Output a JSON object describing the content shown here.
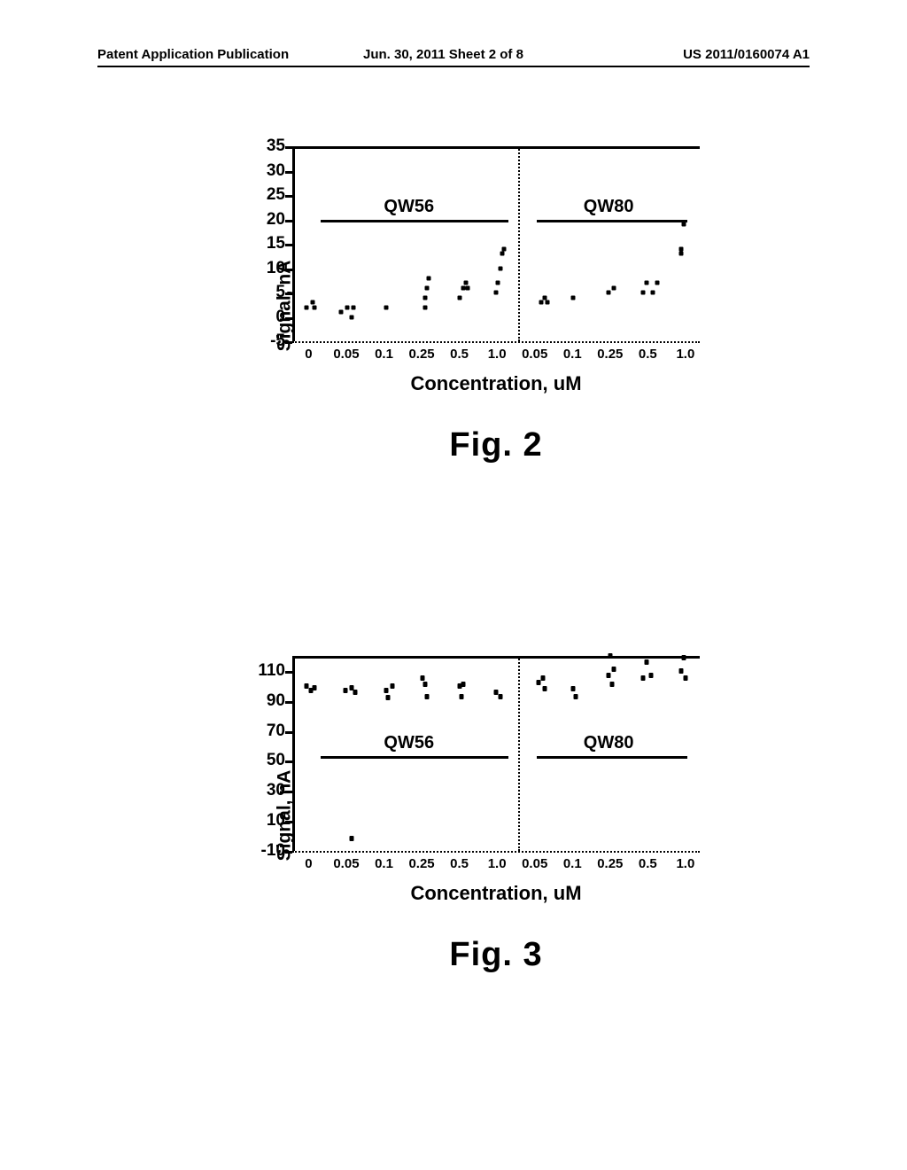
{
  "header": {
    "left": "Patent Application Publication",
    "mid": "Jun. 30, 2011  Sheet 2 of 8",
    "right": "US 2011/0160074 A1"
  },
  "labels": {
    "ylabel": "Signal, nA",
    "xlabel": "Concentration, uM",
    "series_a": "QW56",
    "series_b": "QW80",
    "fig2": "Fig. 2",
    "fig3": "Fig. 3"
  },
  "fig2": {
    "type": "scatter",
    "ylim": [
      -5,
      35
    ],
    "yticks": [
      -5,
      0,
      5,
      10,
      15,
      20,
      25,
      30,
      35
    ],
    "xcats": [
      "0",
      "0.05",
      "0.1",
      "0.25",
      "0.5",
      "1.0",
      "0.05",
      "0.1",
      "0.25",
      "0.5",
      "1.0"
    ],
    "series_bar_a": {
      "x0": 0.07,
      "x1": 0.53
    },
    "series_bar_b": {
      "x0": 0.6,
      "x1": 0.97
    },
    "series_label_a_pos": {
      "x": 0.29,
      "y": 24
    },
    "series_label_b_pos": {
      "x": 0.78,
      "y": 24
    },
    "vsplit_x": 0.555,
    "dotline_y": -5,
    "marker_w": 5,
    "marker_h": 5,
    "points": [
      {
        "x": 0.035,
        "y": 2
      },
      {
        "x": 0.05,
        "y": 3
      },
      {
        "x": 0.055,
        "y": 2
      },
      {
        "x": 0.12,
        "y": 1
      },
      {
        "x": 0.135,
        "y": 2
      },
      {
        "x": 0.15,
        "y": 2
      },
      {
        "x": 0.145,
        "y": 0
      },
      {
        "x": 0.23,
        "y": 2
      },
      {
        "x": 0.325,
        "y": 2
      },
      {
        "x": 0.325,
        "y": 4
      },
      {
        "x": 0.33,
        "y": 6
      },
      {
        "x": 0.335,
        "y": 8
      },
      {
        "x": 0.41,
        "y": 4
      },
      {
        "x": 0.42,
        "y": 6
      },
      {
        "x": 0.425,
        "y": 7
      },
      {
        "x": 0.43,
        "y": 6
      },
      {
        "x": 0.5,
        "y": 5
      },
      {
        "x": 0.505,
        "y": 7
      },
      {
        "x": 0.51,
        "y": 10
      },
      {
        "x": 0.515,
        "y": 13
      },
      {
        "x": 0.52,
        "y": 14
      },
      {
        "x": 0.61,
        "y": 3
      },
      {
        "x": 0.62,
        "y": 4
      },
      {
        "x": 0.625,
        "y": 3
      },
      {
        "x": 0.69,
        "y": 4
      },
      {
        "x": 0.775,
        "y": 5
      },
      {
        "x": 0.79,
        "y": 6
      },
      {
        "x": 0.86,
        "y": 5
      },
      {
        "x": 0.87,
        "y": 7
      },
      {
        "x": 0.885,
        "y": 5
      },
      {
        "x": 0.895,
        "y": 7
      },
      {
        "x": 0.955,
        "y": 13
      },
      {
        "x": 0.955,
        "y": 14
      },
      {
        "x": 0.96,
        "y": 19
      }
    ]
  },
  "fig3": {
    "type": "scatter",
    "ylim": [
      -10,
      120
    ],
    "yticks": [
      -10,
      10,
      30,
      50,
      70,
      90,
      110
    ],
    "xcats": [
      "0",
      "0.05",
      "0.1",
      "0.25",
      "0.5",
      "1.0",
      "0.05",
      "0.1",
      "0.25",
      "0.5",
      "1.0"
    ],
    "series_bar_a": {
      "x0": 0.07,
      "x1": 0.53
    },
    "series_bar_b": {
      "x0": 0.6,
      "x1": 0.97
    },
    "series_label_a_pos": {
      "x": 0.29,
      "y": 66
    },
    "series_label_b_pos": {
      "x": 0.78,
      "y": 66
    },
    "vsplit_x": 0.555,
    "dotline_y": -10,
    "marker_w": 5,
    "marker_h": 6,
    "points": [
      {
        "x": 0.035,
        "y": 100
      },
      {
        "x": 0.045,
        "y": 97
      },
      {
        "x": 0.055,
        "y": 99
      },
      {
        "x": 0.13,
        "y": 97
      },
      {
        "x": 0.145,
        "y": 99
      },
      {
        "x": 0.155,
        "y": 96
      },
      {
        "x": 0.145,
        "y": -2
      },
      {
        "x": 0.23,
        "y": 97
      },
      {
        "x": 0.235,
        "y": 92
      },
      {
        "x": 0.245,
        "y": 100
      },
      {
        "x": 0.32,
        "y": 105
      },
      {
        "x": 0.325,
        "y": 101
      },
      {
        "x": 0.33,
        "y": 93
      },
      {
        "x": 0.41,
        "y": 100
      },
      {
        "x": 0.415,
        "y": 93
      },
      {
        "x": 0.42,
        "y": 101
      },
      {
        "x": 0.5,
        "y": 96
      },
      {
        "x": 0.51,
        "y": 93
      },
      {
        "x": 0.605,
        "y": 102
      },
      {
        "x": 0.615,
        "y": 105
      },
      {
        "x": 0.62,
        "y": 98
      },
      {
        "x": 0.69,
        "y": 98
      },
      {
        "x": 0.695,
        "y": 93
      },
      {
        "x": 0.775,
        "y": 107
      },
      {
        "x": 0.78,
        "y": 120
      },
      {
        "x": 0.785,
        "y": 101
      },
      {
        "x": 0.79,
        "y": 111
      },
      {
        "x": 0.86,
        "y": 105
      },
      {
        "x": 0.87,
        "y": 116
      },
      {
        "x": 0.88,
        "y": 107
      },
      {
        "x": 0.955,
        "y": 110
      },
      {
        "x": 0.96,
        "y": 119
      },
      {
        "x": 0.965,
        "y": 105
      }
    ]
  },
  "colors": {
    "bg": "#ffffff",
    "fg": "#000000"
  }
}
